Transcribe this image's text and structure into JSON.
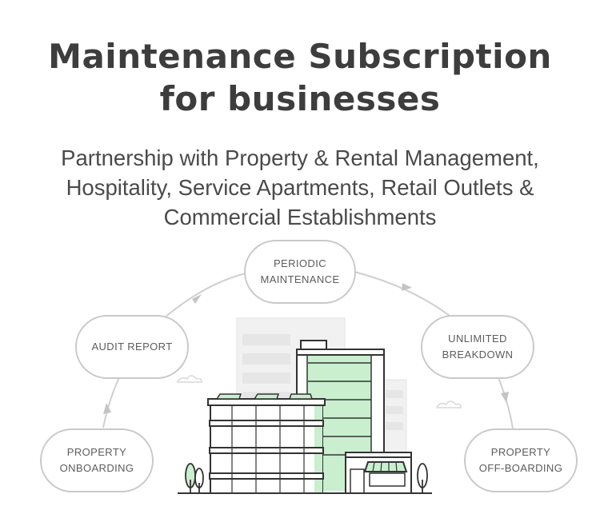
{
  "header": {
    "title_line1": "Maintenance Subscription",
    "title_line2": "for businesses",
    "subtitle_line1": "Partnership with Property & Rental Management,",
    "subtitle_line2": "Hospitality, Service Apartments, Retail Outlets &",
    "subtitle_line3": "Commercial Establishments"
  },
  "cycle": {
    "steps": [
      {
        "line1": "PROPERTY",
        "line2": "ONBOARDING"
      },
      {
        "line1": "AUDIT REPORT",
        "line2": ""
      },
      {
        "line1": "PERIODIC",
        "line2": "MAINTENANCE"
      },
      {
        "line1": "UNLIMITED",
        "line2": "BREAKDOWN"
      },
      {
        "line1": "PROPERTY",
        "line2": "OFF-BOARDING"
      }
    ]
  },
  "colors": {
    "title": "#3d3d3d",
    "node_border": "#c9c9c9",
    "arrow": "#c4c4c4",
    "building_stroke": "#333333",
    "building_accent": "#c9efcf",
    "background_building": "#eeeeee"
  },
  "illustration": {
    "name": "commercial-buildings-illustration"
  }
}
